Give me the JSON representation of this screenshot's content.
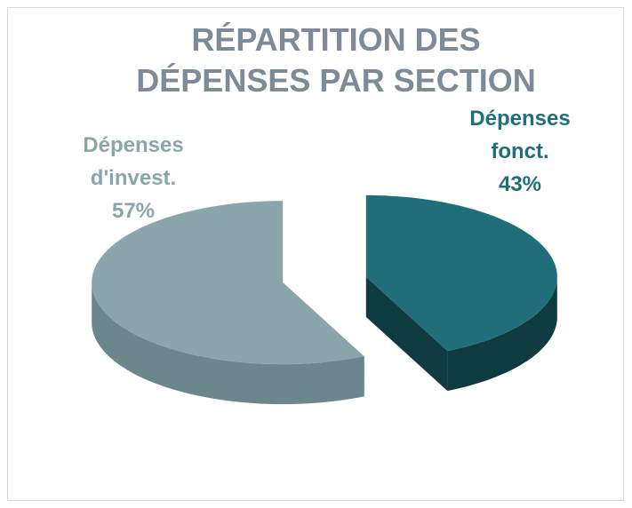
{
  "chart_data": {
    "type": "pie",
    "title": "RÉPARTITION DES DÉPENSES PAR SECTION",
    "categories": [
      "Dépenses fonct.",
      "Dépenses d'invest."
    ],
    "values": [
      43,
      57
    ],
    "value_labels": [
      "43%",
      "57%"
    ],
    "colors": [
      "#1f6e7a",
      "#8aa6ab"
    ],
    "side_colors": [
      "#0e3a40",
      "#6c878c"
    ]
  }
}
